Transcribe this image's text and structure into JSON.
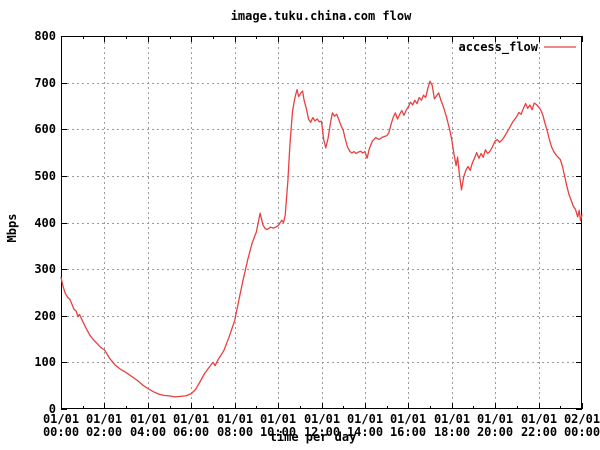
{
  "chart": {
    "title": "image.tuku.china.com flow",
    "ylabel": "Mbps",
    "xlabel": "time per day",
    "legend": {
      "label": "access_flow"
    },
    "colors": {
      "line": "#e84040",
      "grid": "#9a9a9a",
      "axis": "#000000",
      "background": "#ffffff"
    }
  },
  "chart_data": {
    "type": "line",
    "title": "image.tuku.china.com flow",
    "xlabel": "time per day",
    "ylabel": "Mbps",
    "ylim": [
      0,
      800
    ],
    "xlim_hours": [
      0,
      24
    ],
    "grid": true,
    "legend_position": "top-right",
    "y_ticks": [
      0,
      100,
      200,
      300,
      400,
      500,
      600,
      700,
      800
    ],
    "x_ticks": [
      {
        "date": "01/01",
        "time": "00:00"
      },
      {
        "date": "01/01",
        "time": "02:00"
      },
      {
        "date": "01/01",
        "time": "04:00"
      },
      {
        "date": "01/01",
        "time": "06:00"
      },
      {
        "date": "01/01",
        "time": "08:00"
      },
      {
        "date": "01/01",
        "time": "10:00"
      },
      {
        "date": "01/01",
        "time": "12:00"
      },
      {
        "date": "01/01",
        "time": "14:00"
      },
      {
        "date": "01/01",
        "time": "16:00"
      },
      {
        "date": "01/01",
        "time": "18:00"
      },
      {
        "date": "01/01",
        "time": "20:00"
      },
      {
        "date": "01/01",
        "time": "22:00"
      },
      {
        "date": "02/01",
        "time": "00:00"
      }
    ],
    "x_minor_tick_every_hours": 1,
    "series": [
      {
        "name": "access_flow",
        "color": "#e84040",
        "points": [
          [
            0,
            282
          ],
          [
            0.1,
            262
          ],
          [
            0.2,
            248
          ],
          [
            0.3,
            240
          ],
          [
            0.4,
            236
          ],
          [
            0.5,
            225
          ],
          [
            0.6,
            214
          ],
          [
            0.7,
            210
          ],
          [
            0.78,
            198
          ],
          [
            0.85,
            203
          ],
          [
            1,
            188
          ],
          [
            1.17,
            172
          ],
          [
            1.33,
            158
          ],
          [
            1.5,
            148
          ],
          [
            1.67,
            140
          ],
          [
            1.83,
            132
          ],
          [
            2,
            127
          ],
          [
            2.25,
            108
          ],
          [
            2.5,
            94
          ],
          [
            2.75,
            85
          ],
          [
            3,
            78
          ],
          [
            3.25,
            70
          ],
          [
            3.5,
            62
          ],
          [
            3.75,
            52
          ],
          [
            4,
            44
          ],
          [
            4.25,
            37
          ],
          [
            4.5,
            32
          ],
          [
            4.75,
            29
          ],
          [
            5,
            28
          ],
          [
            5.25,
            26
          ],
          [
            5.5,
            27
          ],
          [
            5.75,
            28
          ],
          [
            6,
            33
          ],
          [
            6.2,
            42
          ],
          [
            6.4,
            58
          ],
          [
            6.6,
            75
          ],
          [
            6.8,
            88
          ],
          [
            7,
            100
          ],
          [
            7.1,
            93
          ],
          [
            7.25,
            107
          ],
          [
            7.5,
            125
          ],
          [
            7.75,
            155
          ],
          [
            8,
            190
          ],
          [
            8.2,
            235
          ],
          [
            8.4,
            280
          ],
          [
            8.6,
            320
          ],
          [
            8.8,
            355
          ],
          [
            9,
            380
          ],
          [
            9.17,
            420
          ],
          [
            9.3,
            395
          ],
          [
            9.4,
            387
          ],
          [
            9.5,
            385
          ],
          [
            9.65,
            390
          ],
          [
            9.8,
            388
          ],
          [
            10,
            393
          ],
          [
            10.17,
            405
          ],
          [
            10.25,
            400
          ],
          [
            10.33,
            415
          ],
          [
            10.45,
            490
          ],
          [
            10.55,
            570
          ],
          [
            10.67,
            640
          ],
          [
            10.78,
            668
          ],
          [
            10.87,
            685
          ],
          [
            10.95,
            670
          ],
          [
            11.05,
            678
          ],
          [
            11.13,
            682
          ],
          [
            11.2,
            662
          ],
          [
            11.3,
            645
          ],
          [
            11.4,
            622
          ],
          [
            11.5,
            615
          ],
          [
            11.6,
            625
          ],
          [
            11.7,
            618
          ],
          [
            11.8,
            622
          ],
          [
            11.9,
            616
          ],
          [
            12,
            617
          ],
          [
            12.1,
            578
          ],
          [
            12.2,
            560
          ],
          [
            12.3,
            580
          ],
          [
            12.42,
            615
          ],
          [
            12.5,
            635
          ],
          [
            12.6,
            628
          ],
          [
            12.7,
            632
          ],
          [
            12.8,
            620
          ],
          [
            12.9,
            608
          ],
          [
            13,
            598
          ],
          [
            13.1,
            578
          ],
          [
            13.2,
            562
          ],
          [
            13.3,
            553
          ],
          [
            13.4,
            549
          ],
          [
            13.5,
            552
          ],
          [
            13.6,
            548
          ],
          [
            13.7,
            551
          ],
          [
            13.8,
            553
          ],
          [
            13.9,
            549
          ],
          [
            14,
            552
          ],
          [
            14.1,
            538
          ],
          [
            14.2,
            558
          ],
          [
            14.35,
            575
          ],
          [
            14.5,
            582
          ],
          [
            14.65,
            578
          ],
          [
            14.8,
            583
          ],
          [
            15,
            586
          ],
          [
            15.1,
            592
          ],
          [
            15.2,
            610
          ],
          [
            15.3,
            625
          ],
          [
            15.4,
            635
          ],
          [
            15.5,
            622
          ],
          [
            15.6,
            632
          ],
          [
            15.7,
            640
          ],
          [
            15.8,
            630
          ],
          [
            15.9,
            641
          ],
          [
            16,
            648
          ],
          [
            16.1,
            658
          ],
          [
            16.2,
            652
          ],
          [
            16.3,
            662
          ],
          [
            16.4,
            655
          ],
          [
            16.5,
            668
          ],
          [
            16.6,
            662
          ],
          [
            16.7,
            673
          ],
          [
            16.8,
            668
          ],
          [
            16.9,
            688
          ],
          [
            17,
            703
          ],
          [
            17.1,
            694
          ],
          [
            17.2,
            665
          ],
          [
            17.3,
            672
          ],
          [
            17.4,
            678
          ],
          [
            17.5,
            662
          ],
          [
            17.6,
            650
          ],
          [
            17.75,
            628
          ],
          [
            17.9,
            600
          ],
          [
            18,
            577
          ],
          [
            18.1,
            548
          ],
          [
            18.2,
            522
          ],
          [
            18.27,
            540
          ],
          [
            18.35,
            505
          ],
          [
            18.45,
            470
          ],
          [
            18.55,
            498
          ],
          [
            18.65,
            512
          ],
          [
            18.75,
            520
          ],
          [
            18.85,
            512
          ],
          [
            18.95,
            528
          ],
          [
            19.05,
            538
          ],
          [
            19.15,
            550
          ],
          [
            19.25,
            538
          ],
          [
            19.35,
            548
          ],
          [
            19.45,
            540
          ],
          [
            19.55,
            556
          ],
          [
            19.65,
            548
          ],
          [
            19.75,
            552
          ],
          [
            19.85,
            560
          ],
          [
            20,
            575
          ],
          [
            20.1,
            578
          ],
          [
            20.2,
            572
          ],
          [
            20.3,
            576
          ],
          [
            20.4,
            582
          ],
          [
            20.5,
            590
          ],
          [
            20.65,
            602
          ],
          [
            20.8,
            615
          ],
          [
            21,
            628
          ],
          [
            21.1,
            636
          ],
          [
            21.2,
            632
          ],
          [
            21.3,
            645
          ],
          [
            21.4,
            655
          ],
          [
            21.5,
            645
          ],
          [
            21.6,
            652
          ],
          [
            21.7,
            642
          ],
          [
            21.8,
            656
          ],
          [
            21.9,
            653
          ],
          [
            22,
            648
          ],
          [
            22.1,
            641
          ],
          [
            22.2,
            630
          ],
          [
            22.3,
            612
          ],
          [
            22.4,
            596
          ],
          [
            22.5,
            578
          ],
          [
            22.6,
            562
          ],
          [
            22.7,
            552
          ],
          [
            22.8,
            545
          ],
          [
            22.9,
            540
          ],
          [
            23,
            535
          ],
          [
            23.1,
            520
          ],
          [
            23.2,
            500
          ],
          [
            23.3,
            478
          ],
          [
            23.4,
            460
          ],
          [
            23.5,
            448
          ],
          [
            23.6,
            435
          ],
          [
            23.7,
            428
          ],
          [
            23.8,
            412
          ],
          [
            23.87,
            426
          ],
          [
            23.93,
            404
          ],
          [
            24,
            416
          ]
        ]
      }
    ]
  }
}
